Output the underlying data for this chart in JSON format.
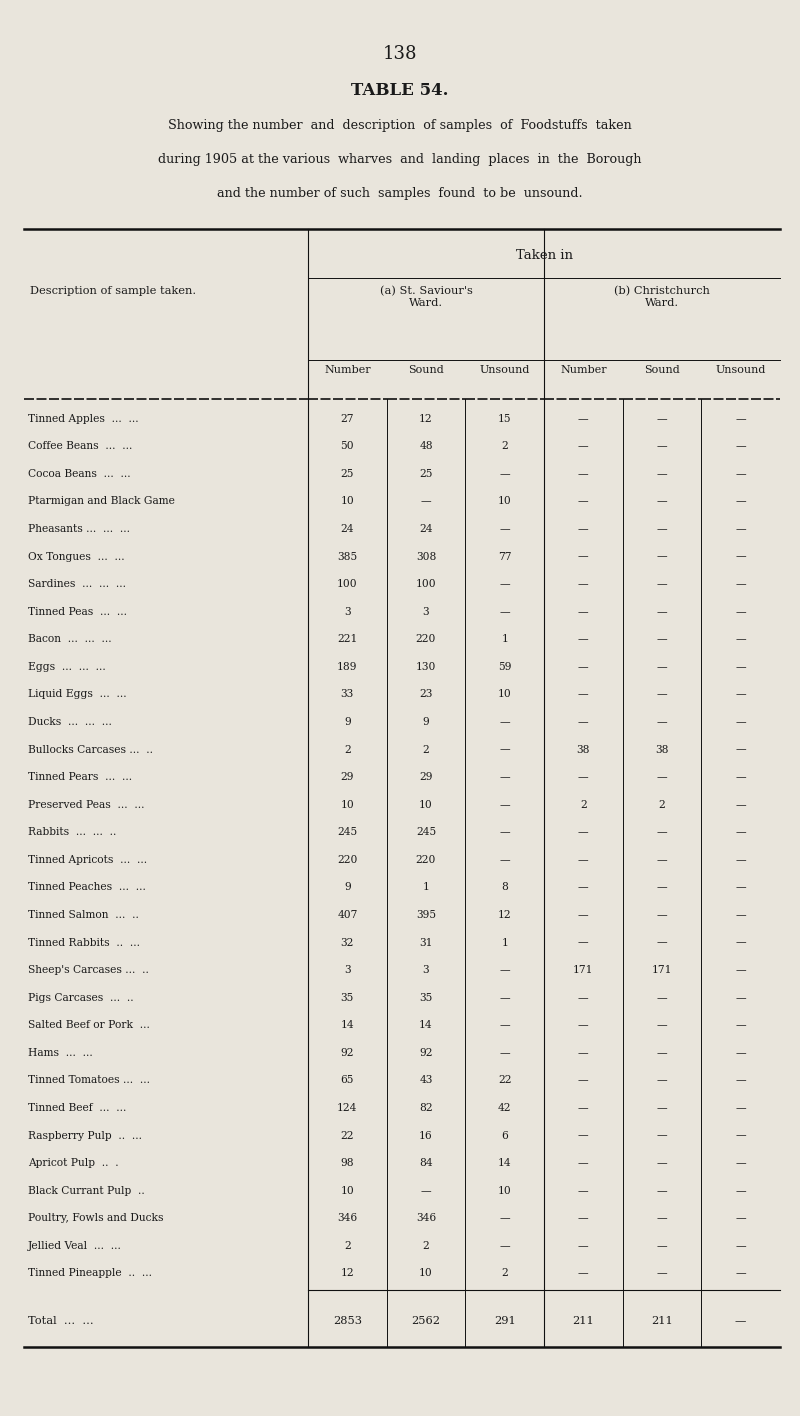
{
  "page_number": "138",
  "title": "TABLE 54.",
  "subtitle_lines": [
    "Showing the number  and  description  of samples  of  Foodstuffs  taken",
    "during 1905 at the various  wharves  and  landing  places  in  the  Borough",
    "and the number of such  samples  found  to be  unsound."
  ],
  "col_header_top": "Taken in",
  "col_headers_mid": [
    "(a) St. Saviour's\nWard.",
    "(b) Christchurch\nWard."
  ],
  "col_headers_sub": [
    "Number",
    "Sound",
    "Unsound",
    "Number",
    "Sound",
    "Unsound"
  ],
  "row_label_col": "Description of sample taken.",
  "rows": [
    [
      "Tinned Apples  ...  ...",
      "27",
      "12",
      "15",
      "—",
      "—",
      "—"
    ],
    [
      "Coffee Beans  ...  ...",
      "50",
      "48",
      "2",
      "—",
      "—",
      "—"
    ],
    [
      "Cocoa Beans  ...  ...",
      "25",
      "25",
      "—",
      "—",
      "—",
      "—"
    ],
    [
      "Ptarmigan and Black Game",
      "10",
      "—",
      "10",
      "—",
      "—",
      "—"
    ],
    [
      "Pheasants ...  ...  ...",
      "24",
      "24",
      "—",
      "—",
      "—",
      "—"
    ],
    [
      "Ox Tongues  ...  ...",
      "385",
      "308",
      "77",
      "—",
      "—",
      "—"
    ],
    [
      "Sardines  ...  ...  ...",
      "100",
      "100",
      "—",
      "—",
      "—",
      "—"
    ],
    [
      "Tinned Peas  ...  ...",
      "3",
      "3",
      "—",
      "—",
      "—",
      "—"
    ],
    [
      "Bacon  ...  ...  ...",
      "221",
      "220",
      "1",
      "—",
      "—",
      "—"
    ],
    [
      "Eggs  ...  ...  ...",
      "189",
      "130",
      "59",
      "—",
      "—",
      "—"
    ],
    [
      "Liquid Eggs  ...  ...",
      "33",
      "23",
      "10",
      "—",
      "—",
      "—"
    ],
    [
      "Ducks  ...  ...  ...",
      "9",
      "9",
      "—",
      "—",
      "—",
      "—"
    ],
    [
      "Bullocks Carcases ...  ..",
      "2",
      "2",
      "—",
      "38",
      "38",
      "—"
    ],
    [
      "Tinned Pears  ...  ...",
      "29",
      "29",
      "—",
      "—",
      "—",
      "—"
    ],
    [
      "Preserved Peas  ...  ...",
      "10",
      "10",
      "—",
      "2",
      "2",
      "—"
    ],
    [
      "Rabbits  ...  ...  ..",
      "245",
      "245",
      "—",
      "—",
      "—",
      "—"
    ],
    [
      "Tinned Apricots  ...  ...",
      "220",
      "220",
      "—",
      "—",
      "—",
      "—"
    ],
    [
      "Tinned Peaches  ...  ...",
      "9",
      "1",
      "8",
      "—",
      "—",
      "—"
    ],
    [
      "Tinned Salmon  ...  ..",
      "407",
      "395",
      "12",
      "—",
      "—",
      "—"
    ],
    [
      "Tinned Rabbits  ..  ...",
      "32",
      "31",
      "1",
      "—",
      "—",
      "—"
    ],
    [
      "Sheep's Carcases ...  ..",
      "3",
      "3",
      "—",
      "171",
      "171",
      "—"
    ],
    [
      "Pigs Carcases  ...  ..",
      "35",
      "35",
      "—",
      "—",
      "—",
      "—"
    ],
    [
      "Salted Beef or Pork  ...",
      "14",
      "14",
      "—",
      "—",
      "—",
      "—"
    ],
    [
      "Hams  ...  ...",
      "92",
      "92",
      "—",
      "—",
      "—",
      "—"
    ],
    [
      "Tinned Tomatoes ...  ...",
      "65",
      "43",
      "22",
      "—",
      "—",
      "—"
    ],
    [
      "Tinned Beef  ...  ...",
      "124",
      "82",
      "42",
      "—",
      "—",
      "—"
    ],
    [
      "Raspberry Pulp  ..  ...",
      "22",
      "16",
      "6",
      "—",
      "—",
      "—"
    ],
    [
      "Apricot Pulp  ..  .",
      "98",
      "84",
      "14",
      "—",
      "—",
      "—"
    ],
    [
      "Black Currant Pulp  ..",
      "10",
      "—",
      "10",
      "—",
      "—",
      "—"
    ],
    [
      "Poultry, Fowls and Ducks",
      "346",
      "346",
      "—",
      "—",
      "—",
      "—"
    ],
    [
      "Jellied Veal  ...  ...",
      "2",
      "2",
      "—",
      "—",
      "—",
      "—"
    ],
    [
      "Tinned Pineapple  ..  ...",
      "12",
      "10",
      "2",
      "—",
      "—",
      "—"
    ]
  ],
  "total_row": [
    "Total  ...  ...",
    "2853",
    "2562",
    "291",
    "211",
    "211",
    "—"
  ],
  "bg_color": "#e9e5dc",
  "text_color": "#1a1a1a",
  "line_color": "#111111"
}
